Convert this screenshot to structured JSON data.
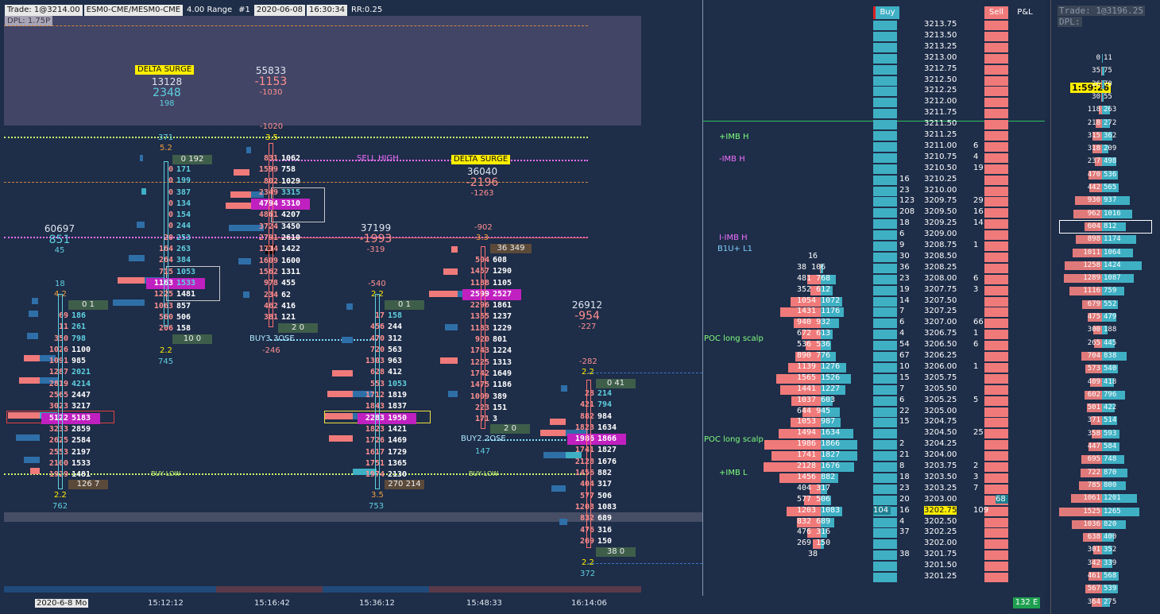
{
  "header": {
    "trade": "Trade: 1@3214.00",
    "instrument": "ESM0-CME/MESM0-CME",
    "range": "4.00 Range",
    "id": "#1",
    "date": "2020-06-08",
    "time": "16:30:34",
    "rr": "RR:0.25",
    "dpl": "DPL: 1.75P"
  },
  "annotations": {
    "delta_surge_1": "DELTA SURGE",
    "delta_surge_2": "DELTA SURGE",
    "sell_high": "SELL HIGH",
    "buy_low_1": "BUY LOW",
    "buy_low_2": "BUY LOW",
    "buy_close_1": "BUY3.3OSE",
    "buy_close_2": "BUY2.2OSE",
    "l1": "L1"
  },
  "stats": {
    "s1_a": "13128",
    "s1_b": "2348",
    "s1_c": "198",
    "s2_a": "55833",
    "s2_b": "-1153",
    "s2_c": "-1030",
    "s3_a": "60697",
    "s3_b": "851",
    "s3_c": "45",
    "s4_a": "36040",
    "s4_b": "-2196",
    "s4_c": "-1263",
    "s5_a": "37199",
    "s5_b": "-1993",
    "s5_c": "-319",
    "s6_a": "26912",
    "s6_b": "-954",
    "s6_c": "-227",
    "n371": "371",
    "n52": "5.2",
    "n1020": "-1020",
    "n35": "3.5",
    "n18": "18",
    "n42": "4.2",
    "n22a": "2.2",
    "n762": "762",
    "n22b": "2.2",
    "n745": "745",
    "n246": "-246",
    "n540": "-540",
    "n22c": "2.2",
    "n35b": "3.5",
    "n753": "753",
    "n902": "-902",
    "n33": "3.3",
    "n147": "147",
    "n282": "-282",
    "n22d": "2.2",
    "n22e": "2.2",
    "n372": "372"
  },
  "tags": {
    "t1": "0  1",
    "t2": "126  7",
    "t3": "0  192",
    "t4": "2  0",
    "t5": "0  1",
    "t6": "270  214",
    "t7": "36  349",
    "t8": "2  0",
    "t9": "0  41",
    "t10": "38  0",
    "t11": "10  0"
  },
  "footprint1": [
    [
      "69",
      "186"
    ],
    [
      "11",
      "261"
    ],
    [
      "350",
      "798"
    ],
    [
      "1026",
      "1100"
    ],
    [
      "1091",
      "985"
    ],
    [
      "1287",
      "2021"
    ],
    [
      "2819",
      "4214"
    ],
    [
      "2565",
      "2447"
    ],
    [
      "3023",
      "3217"
    ],
    [
      "5122",
      "5183"
    ],
    [
      "3233",
      "2859"
    ],
    [
      "2625",
      "2584"
    ],
    [
      "2553",
      "2197"
    ],
    [
      "2100",
      "1533"
    ],
    [
      "1929",
      "1481"
    ]
  ],
  "footprint2": [
    [
      "0",
      "171"
    ],
    [
      "0",
      "199"
    ],
    [
      "0",
      "387"
    ],
    [
      "0",
      "134"
    ],
    [
      "0",
      "154"
    ],
    [
      "0",
      "244"
    ],
    [
      "20",
      "253"
    ],
    [
      "164",
      "263"
    ],
    [
      "264",
      "384"
    ],
    [
      "715",
      "1053"
    ],
    [
      "1163",
      "1533"
    ],
    [
      "1225",
      "1481"
    ],
    [
      "1063",
      "857"
    ],
    [
      "560",
      "506"
    ],
    [
      "206",
      "158"
    ]
  ],
  "footprint3": [
    [
      "831",
      "1062"
    ],
    [
      "1599",
      "758"
    ],
    [
      "802",
      "1029"
    ],
    [
      "2349",
      "3315"
    ],
    [
      "4794",
      "5310"
    ],
    [
      "4861",
      "4207"
    ],
    [
      "3724",
      "3450"
    ],
    [
      "2791",
      "2610"
    ],
    [
      "1714",
      "1422"
    ],
    [
      "1609",
      "1600"
    ],
    [
      "1562",
      "1311"
    ],
    [
      "978",
      "455"
    ],
    [
      "234",
      "62"
    ],
    [
      "462",
      "416"
    ],
    [
      "381",
      "121"
    ]
  ],
  "footprint4": [
    [
      "17",
      "158"
    ],
    [
      "456",
      "244"
    ],
    [
      "470",
      "312"
    ],
    [
      "720",
      "563"
    ],
    [
      "1303",
      "963"
    ],
    [
      "628",
      "412"
    ],
    [
      "553",
      "1053"
    ],
    [
      "1712",
      "1819"
    ],
    [
      "1843",
      "1837"
    ],
    [
      "2283",
      "1950"
    ],
    [
      "1823",
      "1421"
    ],
    [
      "1726",
      "1469"
    ],
    [
      "1617",
      "1729"
    ],
    [
      "1751",
      "1365"
    ],
    [
      "1974",
      "2130"
    ]
  ],
  "footprint5": [
    [
      "504",
      "608"
    ],
    [
      "1457",
      "1290"
    ],
    [
      "1188",
      "1105"
    ],
    [
      "2599",
      "2527"
    ],
    [
      "2296",
      "1861"
    ],
    [
      "1355",
      "1237"
    ],
    [
      "1183",
      "1229"
    ],
    [
      "920",
      "801"
    ],
    [
      "1743",
      "1224"
    ],
    [
      "1225",
      "1313"
    ],
    [
      "1742",
      "1649"
    ],
    [
      "1475",
      "1186"
    ],
    [
      "1009",
      "389"
    ],
    [
      "223",
      "151"
    ],
    [
      "171",
      "3"
    ]
  ],
  "footprint6": [
    [
      "28",
      "214"
    ],
    [
      "421",
      "794"
    ],
    [
      "882",
      "984"
    ],
    [
      "1823",
      "1634"
    ],
    [
      "1986",
      "1866"
    ],
    [
      "1741",
      "1827"
    ],
    [
      "2128",
      "1676"
    ],
    [
      "1456",
      "882"
    ],
    [
      "404",
      "317"
    ],
    [
      "577",
      "506"
    ],
    [
      "1203",
      "1083"
    ],
    [
      "832",
      "689"
    ],
    [
      "476",
      "316"
    ],
    [
      "269",
      "150"
    ]
  ],
  "time_axis": {
    "date": "2020-6-8 Mo",
    "t1": "15:12:12",
    "t2": "15:16:42",
    "t3": "15:36:12",
    "t4": "15:48:33",
    "t5": "16:14:06"
  },
  "dom": {
    "buy_label": "Buy",
    "sell_label": "Sell",
    "pnl_label": "P&L",
    "status": "132 E",
    "prices": [
      "3213.75",
      "3213.50",
      "3213.25",
      "3213.00",
      "3212.75",
      "3212.50",
      "3212.25",
      "3212.00",
      "3211.75",
      "3211.50",
      "3211.25",
      "3211.00",
      "3210.75",
      "3210.50",
      "3210.25",
      "3210.00",
      "3209.75",
      "3209.50",
      "3209.25",
      "3209.00",
      "3208.75",
      "3208.50",
      "3208.25",
      "3208.00",
      "3207.75",
      "3207.50",
      "3207.25",
      "3207.00",
      "3206.75",
      "3206.50",
      "3206.25",
      "3206.00",
      "3205.75",
      "3205.50",
      "3205.25",
      "3205.00",
      "3204.75",
      "3204.50",
      "3204.25",
      "3204.00",
      "3203.75",
      "3203.50",
      "3203.25",
      "3203.00",
      "3202.75",
      "3202.50",
      "3202.25",
      "3202.00",
      "3201.75",
      "3201.50",
      "3201.25"
    ],
    "current_price": "3202.75",
    "labels": {
      "imb_h_1": "+IMB H",
      "imb_h_2": "-IMB H",
      "imb_h_3": "I-IMB H",
      "b1u": "B1U+ L1",
      "poc1": "POC long scalp",
      "poc2": "POC long scalp",
      "imb_l": "+IMB L"
    },
    "buy_side_nums": [
      "16",
      "23",
      "123",
      "208",
      "18",
      "6",
      "9",
      "30",
      "36",
      "23",
      "19",
      "14",
      "7",
      "6",
      "4",
      "54",
      "67",
      "10",
      "15",
      "7",
      "6",
      "22",
      "15",
      "",
      "2",
      "21",
      "8",
      "18",
      "23",
      "20",
      "16",
      "4",
      "37",
      "",
      "38"
    ],
    "sell_side_nums": [
      "6",
      "4",
      "19",
      "",
      "",
      "29",
      "16",
      "14",
      "",
      "1",
      "",
      "",
      "6",
      "3",
      "",
      "",
      "66",
      "1",
      "6",
      "",
      "1",
      "",
      "",
      "5",
      "",
      "",
      "25",
      "",
      "",
      "2",
      "3",
      "7",
      "",
      "109"
    ],
    "vol_left": [
      "16",
      "38 106",
      "481 768",
      "352 612",
      "1054 1072",
      "1431 1176",
      "940 932",
      "672 613",
      "536 536",
      "890 776",
      "1139 1276",
      "1565 1526",
      "1441 1227",
      "1037 603",
      "644 945",
      "1053 987",
      "1494 1634",
      "1986 1866",
      "1741 1827",
      "2128 1676",
      "1456 882",
      "404 317",
      "577 506",
      "1203 1083",
      "832 689",
      "476 316",
      "269 150",
      "38"
    ],
    "bid_104": "104",
    "ask_68": "68",
    "ask_4": "4"
  },
  "mini": {
    "trade": "Trade: 1@3196.25",
    "dpl": "DPL:",
    "timer": "1:59:26",
    "rows": [
      [
        "0",
        "11"
      ],
      [
        "35",
        "75"
      ],
      [
        "26",
        "70"
      ],
      [
        "30",
        "55"
      ],
      [
        "118",
        "263"
      ],
      [
        "218",
        "272"
      ],
      [
        "315",
        "362"
      ],
      [
        "318",
        "209"
      ],
      [
        "237",
        "498"
      ],
      [
        "470",
        "536"
      ],
      [
        "442",
        "565"
      ],
      [
        "930",
        "937"
      ],
      [
        "962",
        "1016"
      ],
      [
        "604",
        "812"
      ],
      [
        "898",
        "1174"
      ],
      [
        "1011",
        "1064"
      ],
      [
        "1258",
        "1424"
      ],
      [
        "1289",
        "1087"
      ],
      [
        "1116",
        "759"
      ],
      [
        "679",
        "552"
      ],
      [
        "475",
        "479"
      ],
      [
        "300",
        "188"
      ],
      [
        "265",
        "445"
      ],
      [
        "704",
        "838"
      ],
      [
        "573",
        "540"
      ],
      [
        "409",
        "418"
      ],
      [
        "602",
        "796"
      ],
      [
        "501",
        "422"
      ],
      [
        "371",
        "514"
      ],
      [
        "358",
        "593"
      ],
      [
        "447",
        "584"
      ],
      [
        "695",
        "748"
      ],
      [
        "722",
        "870"
      ],
      [
        "785",
        "800"
      ],
      [
        "1061",
        "1201"
      ],
      [
        "1525",
        "1265"
      ],
      [
        "1036",
        "820"
      ],
      [
        "638",
        "400"
      ],
      [
        "301",
        "352"
      ],
      [
        "342",
        "339"
      ],
      [
        "461",
        "568"
      ],
      [
        "567",
        "539"
      ],
      [
        "364",
        "275"
      ]
    ]
  }
}
